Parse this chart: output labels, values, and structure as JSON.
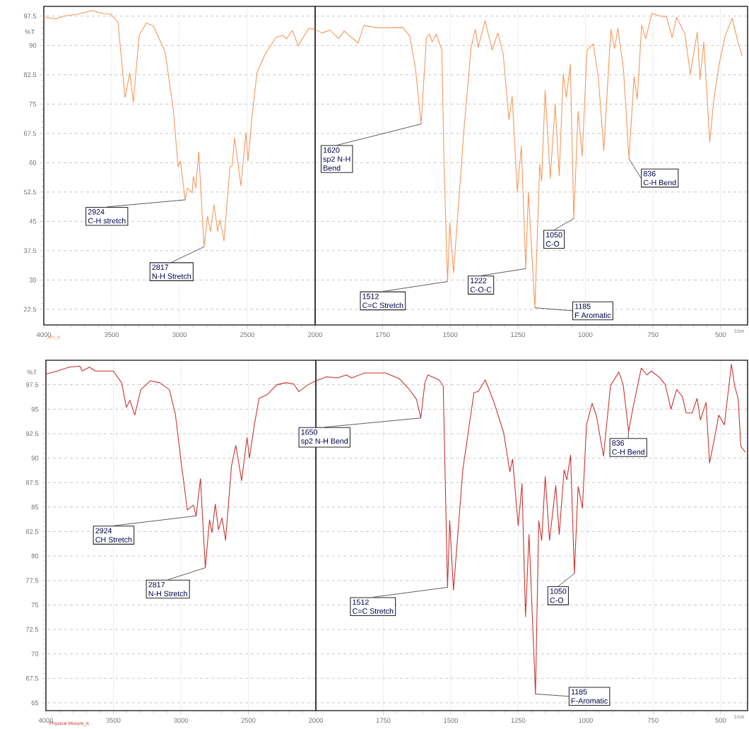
{
  "chart_data": [
    {
      "type": "line",
      "ylabel": "%T",
      "xlim": [
        4000,
        2000
      ],
      "ylim": [
        18.5,
        100
      ],
      "grid": true,
      "xticks": [
        4000,
        3500,
        3000,
        2500,
        2000
      ],
      "yticks": [
        22.5,
        30,
        37.5,
        45,
        52.5,
        60,
        67.5,
        75,
        82.5,
        90,
        97.5
      ],
      "series": [
        {
          "color": "#f7955a",
          "x": [
            4000,
            3913,
            3852,
            3748,
            3644,
            3557,
            3505,
            3453,
            3401,
            3366,
            3340,
            3297,
            3245,
            3193,
            3106,
            3045,
            3010,
            2993,
            2958,
            2941,
            2906,
            2898,
            2880,
            2858,
            2819,
            2793,
            2771,
            2745,
            2719,
            2701,
            2672,
            2628,
            2611,
            2594,
            2547,
            2510,
            2495,
            2464,
            2429,
            2368,
            2290,
            2238,
            2212,
            2168,
            2125,
            2047,
            2000
          ],
          "values": [
            97.3,
            96.8,
            97.5,
            98.0,
            98.9,
            98.1,
            98.0,
            95.9,
            76.7,
            83.0,
            75.5,
            92.6,
            95.7,
            95.0,
            88.4,
            73.4,
            58.9,
            60.4,
            50.5,
            53.5,
            52.3,
            56.5,
            53.5,
            62.7,
            38.5,
            46.3,
            42.4,
            49.3,
            42.4,
            45.4,
            40.0,
            58.9,
            59.2,
            66.4,
            54.1,
            67.6,
            60.4,
            72.2,
            83.0,
            87.8,
            92.0,
            92.6,
            91.7,
            93.8,
            89.9,
            94.4,
            94.1
          ]
        }
      ],
      "annotations": [
        "API_K",
        {
          "text": "2924",
          "x": 2958,
          "y": 50.5
        },
        "C-H stretch",
        {
          "text": "2817",
          "x": 2819,
          "y": 38.5
        },
        "N-H Stretch"
      ]
    },
    {
      "type": "line",
      "xlabel": "1/cm",
      "xlim": [
        2000,
        400
      ],
      "ylim": [
        18.5,
        100
      ],
      "grid": true,
      "tick_labels": "x",
      "xticks": [
        1750,
        1500,
        1250,
        1000,
        750,
        500
      ],
      "yticks": [
        22.5,
        30,
        37.5,
        45,
        52.5,
        60,
        67.5,
        75,
        82.5,
        90,
        97.5
      ],
      "series": [
        {
          "color": "#f7955a",
          "x": [
            2000,
            1975,
            1944,
            1913,
            1893,
            1841,
            1820,
            1769,
            1676,
            1650,
            1629,
            1608,
            1588,
            1577,
            1567,
            1552,
            1531,
            1523,
            1510,
            1502,
            1488,
            1448,
            1423,
            1407,
            1397,
            1371,
            1345,
            1324,
            1304,
            1283,
            1271,
            1252,
            1237,
            1221,
            1211,
            1187,
            1169,
            1162,
            1149,
            1130,
            1112,
            1097,
            1082,
            1071,
            1056,
            1043,
            1027,
            1012,
            994,
            971,
            952,
            932,
            906,
            892,
            880,
            859,
            839,
            820,
            808,
            792,
            777,
            754,
            725,
            700,
            679,
            663,
            632,
            612,
            586,
            576,
            562,
            540,
            524,
            503,
            483,
            457,
            436,
            420
          ],
          "values": [
            94.1,
            93.2,
            93.9,
            91.7,
            93.7,
            90.6,
            95.1,
            94.5,
            94.6,
            92.4,
            84.2,
            69.9,
            92.0,
            92.9,
            90.9,
            92.9,
            88.8,
            58.9,
            29.6,
            44.6,
            31.8,
            69.6,
            89.5,
            94.1,
            89.5,
            96.3,
            88.8,
            93.2,
            87.7,
            71.0,
            77.0,
            52.5,
            64.2,
            32.9,
            52.5,
            22.9,
            59.6,
            55.3,
            78.5,
            56.0,
            74.9,
            56.7,
            82.7,
            76.7,
            85.2,
            45.7,
            73.1,
            61.7,
            88.8,
            90.4,
            81.7,
            63.1,
            94.1,
            89.2,
            94.4,
            83.8,
            61.0,
            82.0,
            76.3,
            95.2,
            91.7,
            98.2,
            97.5,
            97.4,
            92.0,
            97.2,
            93.1,
            82.7,
            93.4,
            81.3,
            90.9,
            65.3,
            76.7,
            86.0,
            92.4,
            97.0,
            90.9,
            87.4
          ]
        }
      ],
      "annotations": [
        {
          "text": "1620",
          "x": 1608,
          "y": 69.9
        },
        "sp2 N-H",
        "Bend",
        {
          "text": "1512",
          "x": 1510,
          "y": 29.6
        },
        "C=C Stretch",
        {
          "text": "1222",
          "x": 1221,
          "y": 32.9
        },
        "C-O-C",
        {
          "text": "1185",
          "x": 1187,
          "y": 22.9
        },
        "F Aromatic",
        {
          "text": "1050",
          "x": 1043,
          "y": 45.7
        },
        "C-O",
        {
          "text": "836",
          "x": 839,
          "y": 61.0
        },
        "C-H Bend"
      ]
    },
    {
      "type": "line",
      "ylabel": "%T",
      "xlim": [
        4000,
        2000
      ],
      "ylim": [
        64.2,
        100
      ],
      "grid": true,
      "xticks": [
        4000,
        3500,
        3000,
        2500,
        2000
      ],
      "yticks": [
        65,
        67.5,
        70,
        72.5,
        75,
        77.5,
        80,
        82.5,
        85,
        87.5,
        90,
        92.5,
        95,
        97.5
      ],
      "series": [
        {
          "color": "#c8302c",
          "x": [
            4000,
            3917,
            3828,
            3749,
            3731,
            3678,
            3634,
            3501,
            3439,
            3404,
            3377,
            3342,
            3297,
            3227,
            3156,
            3085,
            3041,
            3000,
            2952,
            2935,
            2908,
            2887,
            2855,
            2819,
            2788,
            2770,
            2745,
            2722,
            2695,
            2669,
            2625,
            2593,
            2550,
            2510,
            2492,
            2457,
            2421,
            2359,
            2288,
            2227,
            2165,
            2126,
            2058,
            2000
          ],
          "values": [
            98.6,
            98.9,
            99.3,
            99.4,
            98.9,
            99.3,
            98.9,
            98.9,
            97.7,
            95.2,
            95.9,
            94.4,
            97.0,
            97.9,
            97.7,
            97.0,
            94.5,
            89.8,
            84.7,
            84.9,
            85.2,
            84.1,
            87.9,
            78.8,
            83.7,
            82.4,
            85.3,
            82.7,
            83.9,
            81.6,
            89.2,
            91.3,
            87.7,
            92.1,
            90.0,
            93.3,
            96.1,
            96.5,
            97.5,
            97.7,
            97.6,
            96.8,
            97.5,
            97.9
          ]
        }
      ],
      "annotations": [
        "Physical Mixture_K",
        {
          "text": "2924",
          "x": 2887,
          "y": 84.1
        },
        "CH Stretch",
        {
          "text": "2817",
          "x": 2819,
          "y": 78.8
        },
        "N-H Stretch"
      ]
    },
    {
      "type": "line",
      "xlabel": "1/cm",
      "xlim": [
        2000,
        400
      ],
      "ylim": [
        64.2,
        100
      ],
      "grid": true,
      "tick_labels": "x",
      "xticks": [
        1750,
        1500,
        1250,
        1000,
        750,
        500
      ],
      "yticks": [
        65,
        67.5,
        70,
        72.5,
        75,
        77.5,
        80,
        82.5,
        85,
        87.5,
        90,
        92.5,
        95,
        97.5
      ],
      "series": [
        {
          "color": "#c8302c",
          "x": [
            2000,
            1960,
            1919,
            1887,
            1867,
            1820,
            1742,
            1690,
            1653,
            1627,
            1611,
            1596,
            1585,
            1544,
            1528,
            1512,
            1504,
            1490,
            1455,
            1414,
            1398,
            1372,
            1341,
            1304,
            1281,
            1271,
            1250,
            1236,
            1223,
            1210,
            1186,
            1174,
            1163,
            1150,
            1134,
            1111,
            1098,
            1080,
            1070,
            1056,
            1042,
            1028,
            1012,
            997,
            976,
            960,
            934,
            908,
            877,
            861,
            841,
            825,
            794,
            773,
            757,
            725,
            705,
            684,
            663,
            642,
            627,
            606,
            587,
            575,
            554,
            541,
            523,
            507,
            486,
            460,
            448,
            435,
            425,
            408
          ],
          "values": [
            97.9,
            98.3,
            98.2,
            98.5,
            98.2,
            98.7,
            98.7,
            98.1,
            97.0,
            96.0,
            94.1,
            97.7,
            98.5,
            98.0,
            97.4,
            76.8,
            83.6,
            76.5,
            88.9,
            96.7,
            96.8,
            98.0,
            95.8,
            92.6,
            88.6,
            89.9,
            83.1,
            87.4,
            73.8,
            82.2,
            65.9,
            83.6,
            81.6,
            88.1,
            81.6,
            87.2,
            82.2,
            88.8,
            87.8,
            90.3,
            78.2,
            87.1,
            84.9,
            93.4,
            95.6,
            94.3,
            90.2,
            97.4,
            98.8,
            97.5,
            92.7,
            95.1,
            99.2,
            98.5,
            98.9,
            98.2,
            97.5,
            95.0,
            97.0,
            96.3,
            94.6,
            94.6,
            96.1,
            93.9,
            95.7,
            89.5,
            92.0,
            94.4,
            93.4,
            99.6,
            97.4,
            96.1,
            91.2,
            90.6
          ]
        }
      ],
      "annotations": [
        {
          "text": "1650",
          "x": 1611,
          "y": 94.1
        },
        "sp2 N-H Bend",
        {
          "text": "1512",
          "x": 1512,
          "y": 76.8
        },
        "C=C Stretch",
        {
          "text": "1185",
          "x": 1186,
          "y": 65.9
        },
        "F-Aromatic",
        {
          "text": "1050",
          "x": 1042,
          "y": 78.2
        },
        "C-O",
        {
          "text": "836",
          "x": 841,
          "y": 92.7
        },
        "C-H Bend"
      ]
    }
  ]
}
